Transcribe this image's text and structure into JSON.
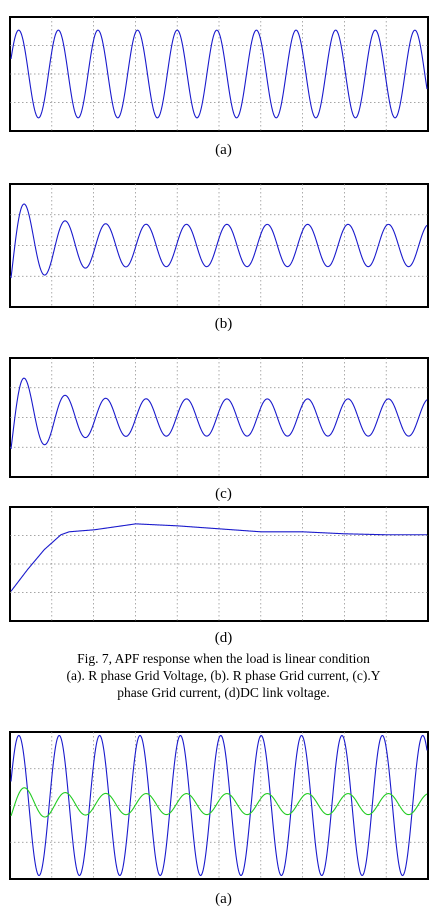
{
  "caption": {
    "line1": "Fig. 7, APF response when the load is linear condition",
    "line2": "(a). R phase Grid Voltage, (b). R phase Grid current,  (c).Y",
    "line3": "phase Grid current, (d)DC link voltage."
  },
  "colors": {
    "trace_blue": "#1a1acc",
    "trace_green": "#22cc22",
    "grid": "#888888",
    "frame": "#000000"
  },
  "chart_data": [
    {
      "type": "line",
      "label": "(a)",
      "grid": true,
      "ylim": [
        -1.3,
        1.3
      ],
      "xlim": [
        0,
        1
      ],
      "series": [
        {
          "color": "#1a1acc",
          "waveform": "sine",
          "cycles": 10.5,
          "amplitude": 1.0
        }
      ]
    },
    {
      "type": "line",
      "label": "(b)",
      "grid": true,
      "ylim": [
        -1.6,
        1.6
      ],
      "xlim": [
        0,
        1
      ],
      "series": [
        {
          "color": "#1a1acc",
          "waveform": "damped-sine",
          "cycles": 10.3,
          "amplitude": 0.55,
          "transient_peak": 1.5
        }
      ]
    },
    {
      "type": "line",
      "label": "(c)",
      "grid": true,
      "ylim": [
        -1.6,
        1.6
      ],
      "xlim": [
        0,
        1
      ],
      "series": [
        {
          "color": "#1a1acc",
          "waveform": "damped-sine",
          "cycles": 10.3,
          "amplitude": 0.5,
          "transient_peak": 1.5
        }
      ]
    },
    {
      "type": "line",
      "label": "(d)",
      "grid": true,
      "ylim": [
        0,
        1.15
      ],
      "xlim": [
        0,
        1
      ],
      "series": [
        {
          "color": "#1a1acc",
          "waveform": "rise-settle",
          "x": [
            0,
            0.04,
            0.08,
            0.12,
            0.14,
            0.2,
            0.3,
            0.4,
            0.5,
            0.6,
            0.7,
            0.8,
            0.9,
            1.0
          ],
          "y": [
            0.3,
            0.52,
            0.72,
            0.87,
            0.9,
            0.92,
            0.98,
            0.96,
            0.93,
            0.9,
            0.9,
            0.88,
            0.87,
            0.87
          ]
        }
      ]
    },
    {
      "type": "line",
      "label": "(a)",
      "grid": true,
      "ylim": [
        -1.05,
        1.05
      ],
      "xlim": [
        0,
        1
      ],
      "series": [
        {
          "color": "#1a1acc",
          "waveform": "sine",
          "cycles": 10.3,
          "amplitude": 1.0
        },
        {
          "color": "#22cc22",
          "waveform": "damped-sine",
          "cycles": 10.3,
          "amplitude": 0.15,
          "offset": 0.02
        }
      ]
    }
  ]
}
